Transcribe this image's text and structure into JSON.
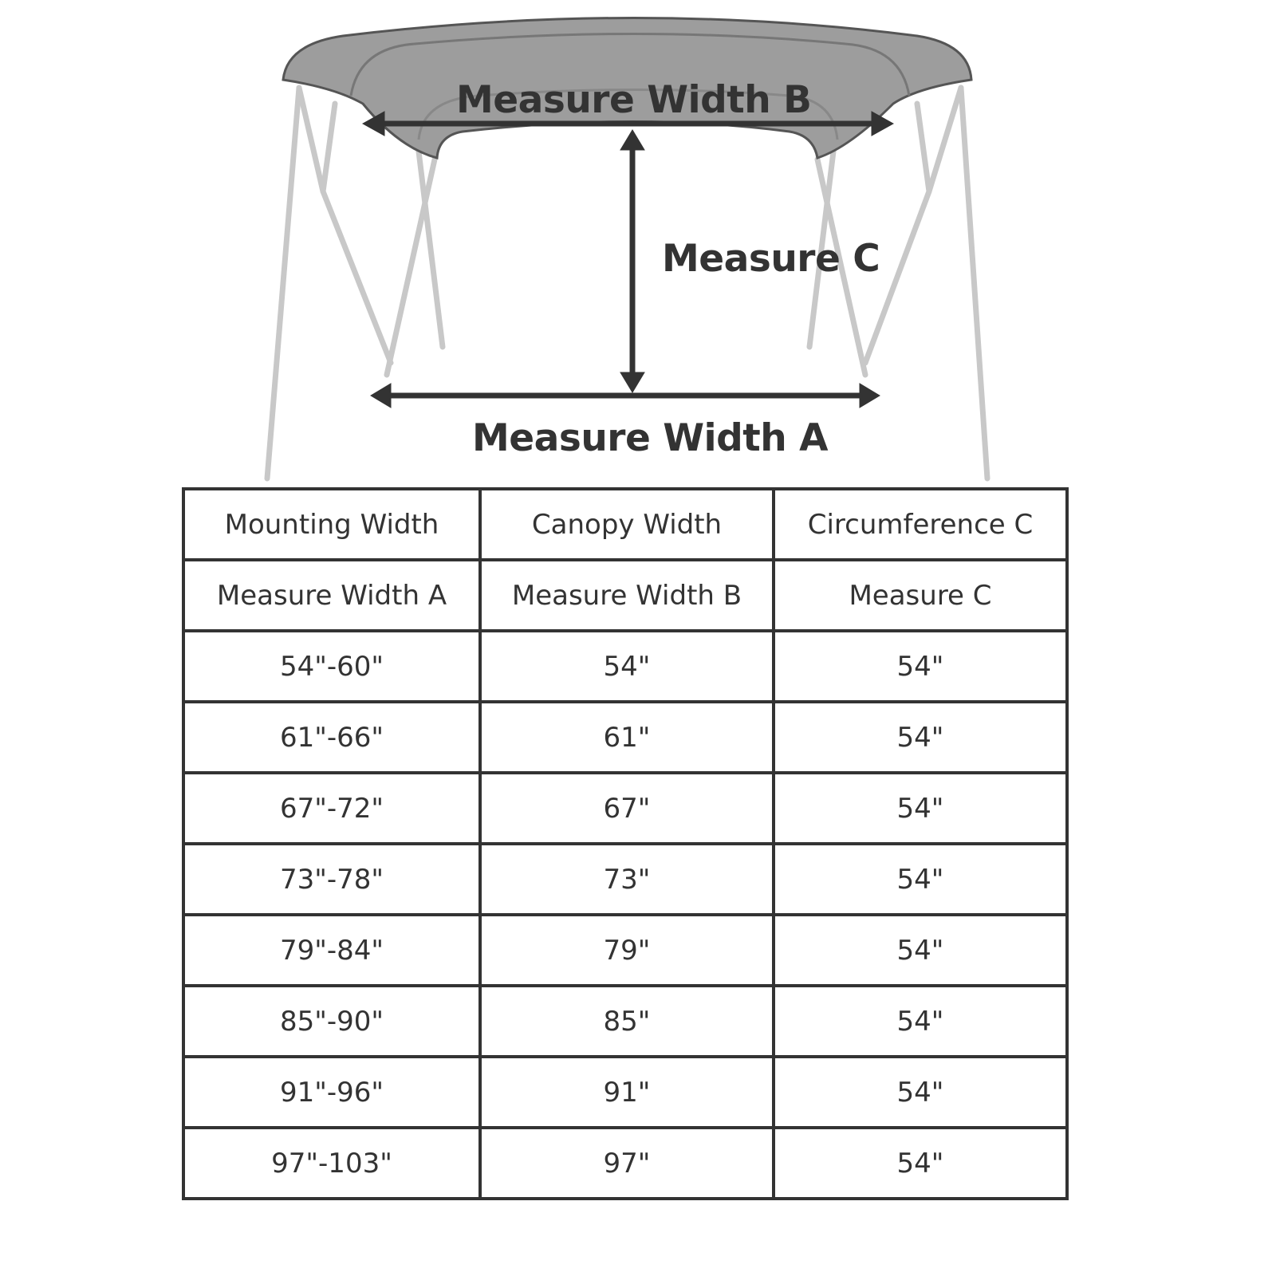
{
  "diagram": {
    "label_width_b": "Measure Width B",
    "label_c": "Measure C",
    "label_width_a": "Measure Width A",
    "colors": {
      "canopy": "#9a9a9a",
      "frame": "#c8c8c8",
      "arrow": "#333333"
    }
  },
  "table": {
    "header_row_1": [
      "Mounting Width",
      "Canopy Width",
      "Circumference C"
    ],
    "header_row_2": [
      "Measure Width A",
      "Measure Width B",
      "Measure C"
    ],
    "rows": [
      [
        "54\"-60\"",
        "54\"",
        "54\""
      ],
      [
        "61\"-66\"",
        "61\"",
        "54\""
      ],
      [
        "67\"-72\"",
        "67\"",
        "54\""
      ],
      [
        "73\"-78\"",
        "73\"",
        "54\""
      ],
      [
        "79\"-84\"",
        "79\"",
        "54\""
      ],
      [
        "85\"-90\"",
        "85\"",
        "54\""
      ],
      [
        "91\"-96\"",
        "91\"",
        "54\""
      ],
      [
        "97\"-103\"",
        "97\"",
        "54\""
      ]
    ]
  }
}
